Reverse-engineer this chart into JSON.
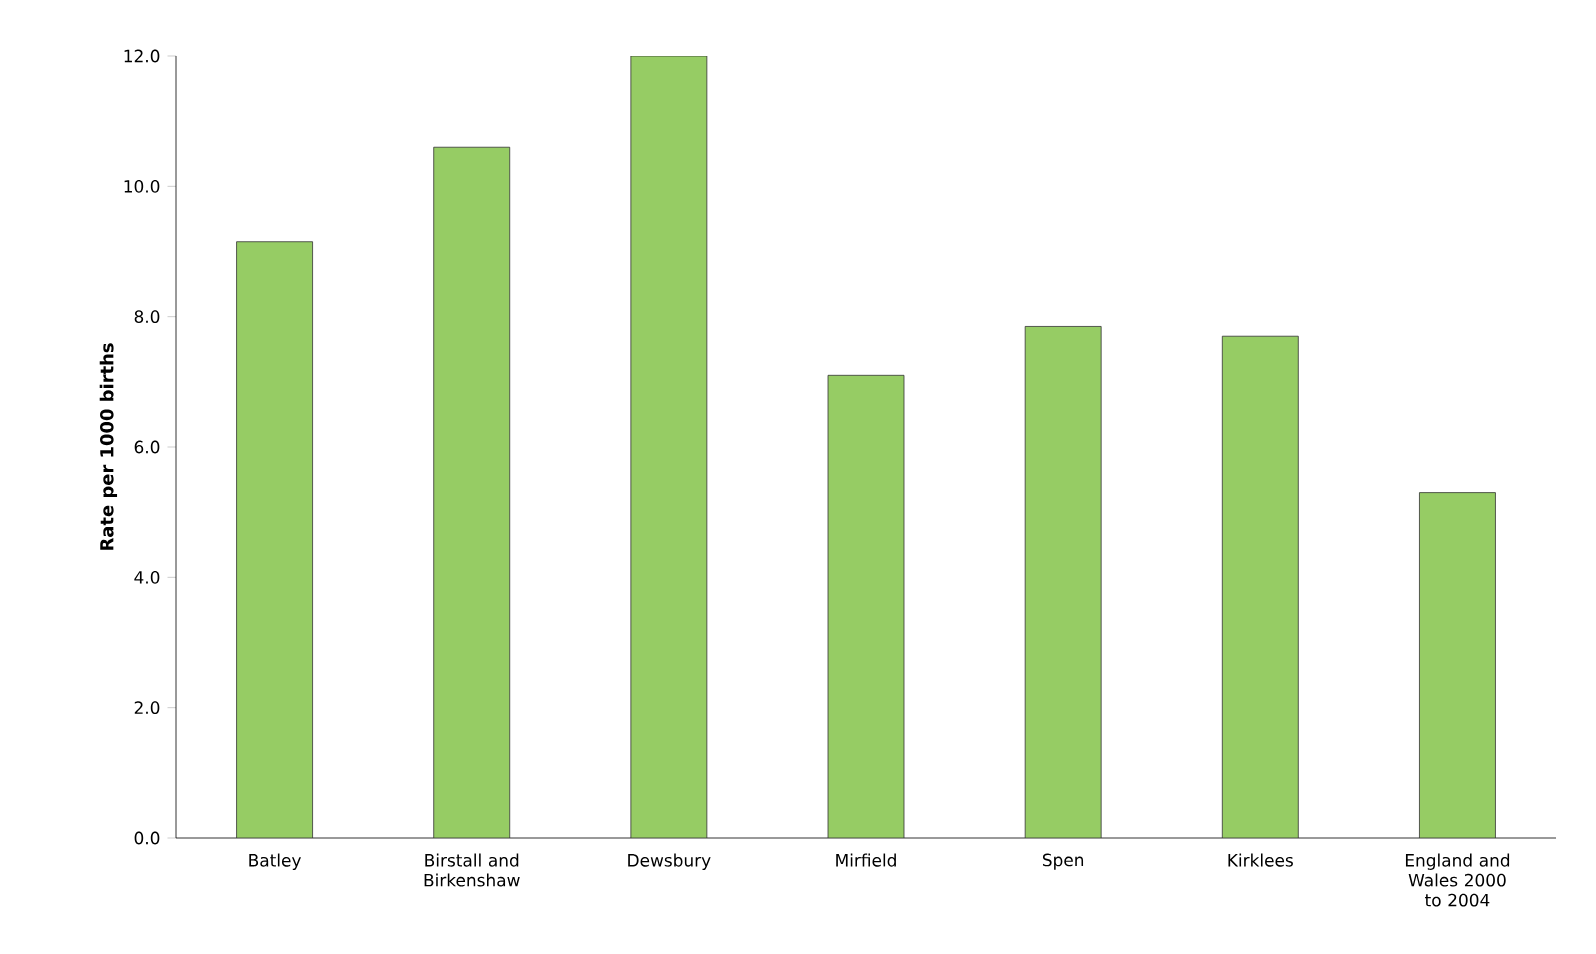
{
  "chart_data": {
    "type": "bar",
    "ylabel": "Rate per 1000 births",
    "categories": [
      "Batley",
      "Birstall and Birkenshaw",
      "Dewsbury",
      "Mirfield",
      "Spen",
      "Kirklees",
      "England and Wales 2000 to 2004"
    ],
    "values": [
      9.15,
      10.6,
      12.0,
      7.1,
      7.85,
      7.7,
      5.3
    ],
    "color": "#96cc64",
    "ylim": [
      0,
      12
    ],
    "yticks": [
      {
        "value": 0,
        "label": "0.0"
      },
      {
        "value": 2,
        "label": "2.0"
      },
      {
        "value": 4,
        "label": "4.0"
      },
      {
        "value": 6,
        "label": "6.0"
      },
      {
        "value": 8,
        "label": "8.0"
      },
      {
        "value": 10,
        "label": "10.0"
      },
      {
        "value": 12,
        "label": "12.0"
      }
    ]
  }
}
